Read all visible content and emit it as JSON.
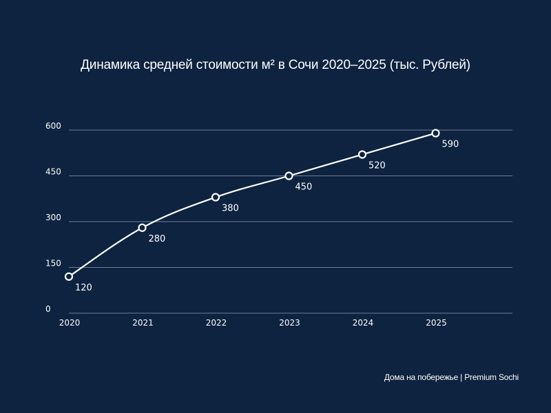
{
  "chart_data": {
    "type": "line",
    "title": "Динамика средней стоимости м² в Сочи 2020–2025 (тыс. Рублей)",
    "x": [
      "2020",
      "2021",
      "2022",
      "2023",
      "2024",
      "2025"
    ],
    "series": [
      {
        "name": "Средняя стоимость м²",
        "values": [
          120,
          280,
          380,
          450,
          520,
          590
        ]
      }
    ],
    "y_ticks": [
      "0",
      "150",
      "300",
      "450",
      "600"
    ],
    "ylim": [
      0,
      600
    ],
    "xlabel": "",
    "ylabel": "",
    "grid": true,
    "colors": {
      "background": "#0d2340",
      "line": "#ffffff",
      "grid": "#6e7f96"
    }
  },
  "footer": "Дома на побережье | Premium Sochi"
}
